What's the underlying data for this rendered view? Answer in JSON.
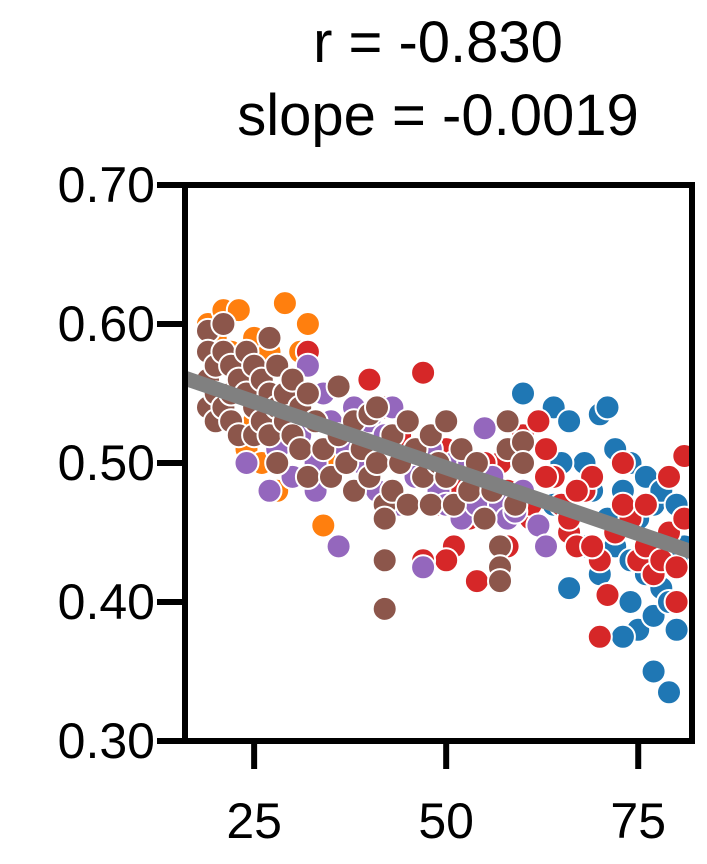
{
  "chart_data": {
    "type": "scatter",
    "title_lines": [
      "r = -0.830",
      "slope = -0.0019"
    ],
    "xlabel": "",
    "ylabel": "",
    "xlim": [
      16,
      82
    ],
    "ylim": [
      0.3,
      0.7
    ],
    "x_ticks": [
      25,
      50,
      75
    ],
    "x_tick_labels": [
      "25",
      "50",
      "75"
    ],
    "y_ticks": [
      0.3,
      0.4,
      0.5,
      0.6,
      0.7
    ],
    "y_tick_labels": [
      "0.30",
      "0.40",
      "0.50",
      "0.60",
      "0.70"
    ],
    "grid": false,
    "regression_line": {
      "r": -0.83,
      "slope": -0.0019,
      "points": [
        [
          16,
          0.561
        ],
        [
          82,
          0.436
        ]
      ],
      "color": "#808080"
    },
    "series": [
      {
        "name": "orange",
        "color": "#ff7f0e",
        "points": [
          [
            19,
            0.6
          ],
          [
            20,
            0.59
          ],
          [
            21,
            0.61
          ],
          [
            22,
            0.58
          ],
          [
            23,
            0.61
          ],
          [
            24,
            0.57
          ],
          [
            25,
            0.59
          ],
          [
            26,
            0.56
          ],
          [
            27,
            0.58
          ],
          [
            29,
            0.615
          ],
          [
            31,
            0.58
          ],
          [
            32,
            0.6
          ],
          [
            24,
            0.51
          ],
          [
            26,
            0.5
          ],
          [
            28,
            0.48
          ],
          [
            30,
            0.49
          ],
          [
            34,
            0.455
          ],
          [
            36,
            0.5
          ],
          [
            38,
            0.48
          ],
          [
            22,
            0.55
          ],
          [
            25,
            0.53
          ]
        ]
      },
      {
        "name": "blue",
        "color": "#1f77b4",
        "points": [
          [
            60,
            0.52
          ],
          [
            62,
            0.53
          ],
          [
            64,
            0.54
          ],
          [
            66,
            0.53
          ],
          [
            68,
            0.5
          ],
          [
            70,
            0.535
          ],
          [
            71,
            0.54
          ],
          [
            72,
            0.51
          ],
          [
            73,
            0.48
          ],
          [
            74,
            0.5
          ],
          [
            75,
            0.46
          ],
          [
            76,
            0.49
          ],
          [
            77,
            0.47
          ],
          [
            78,
            0.48
          ],
          [
            79,
            0.45
          ],
          [
            80,
            0.47
          ],
          [
            81,
            0.44
          ],
          [
            74,
            0.4
          ],
          [
            75,
            0.38
          ],
          [
            73,
            0.375
          ],
          [
            76,
            0.42
          ],
          [
            77,
            0.39
          ],
          [
            78,
            0.41
          ],
          [
            79,
            0.4
          ],
          [
            80,
            0.38
          ],
          [
            77,
            0.35
          ],
          [
            79,
            0.335
          ],
          [
            66,
            0.41
          ],
          [
            70,
            0.42
          ],
          [
            72,
            0.44
          ],
          [
            60,
            0.55
          ],
          [
            64,
            0.47
          ],
          [
            68,
            0.44
          ],
          [
            71,
            0.46
          ],
          [
            74,
            0.43
          ],
          [
            80,
            0.43
          ],
          [
            65,
            0.5
          ],
          [
            69,
            0.48
          ]
        ]
      },
      {
        "name": "red",
        "color": "#d62728",
        "points": [
          [
            32,
            0.58
          ],
          [
            40,
            0.56
          ],
          [
            42,
            0.54
          ],
          [
            44,
            0.52
          ],
          [
            46,
            0.49
          ],
          [
            47,
            0.565
          ],
          [
            48,
            0.5
          ],
          [
            49,
            0.47
          ],
          [
            50,
            0.51
          ],
          [
            51,
            0.44
          ],
          [
            52,
            0.48
          ],
          [
            53,
            0.46
          ],
          [
            54,
            0.415
          ],
          [
            56,
            0.47
          ],
          [
            57,
            0.5
          ],
          [
            58,
            0.48
          ],
          [
            59,
            0.51
          ],
          [
            60,
            0.52
          ],
          [
            61,
            0.46
          ],
          [
            62,
            0.53
          ],
          [
            63,
            0.51
          ],
          [
            64,
            0.49
          ],
          [
            65,
            0.47
          ],
          [
            66,
            0.45
          ],
          [
            67,
            0.44
          ],
          [
            68,
            0.48
          ],
          [
            69,
            0.49
          ],
          [
            70,
            0.43
          ],
          [
            71,
            0.405
          ],
          [
            72,
            0.45
          ],
          [
            73,
            0.5
          ],
          [
            74,
            0.46
          ],
          [
            75,
            0.43
          ],
          [
            76,
            0.44
          ],
          [
            77,
            0.42
          ],
          [
            78,
            0.43
          ],
          [
            79,
            0.45
          ],
          [
            80,
            0.425
          ],
          [
            81,
            0.505
          ],
          [
            80,
            0.4
          ],
          [
            70,
            0.375
          ],
          [
            69,
            0.44
          ],
          [
            66,
            0.46
          ],
          [
            63,
            0.49
          ],
          [
            58,
            0.44
          ],
          [
            50,
            0.43
          ],
          [
            47,
            0.43
          ],
          [
            55,
            0.5
          ],
          [
            61,
            0.47
          ],
          [
            67,
            0.48
          ],
          [
            73,
            0.47
          ],
          [
            76,
            0.47
          ],
          [
            79,
            0.49
          ],
          [
            81,
            0.46
          ]
        ]
      },
      {
        "name": "purple",
        "color": "#9467bd",
        "points": [
          [
            22,
            0.57
          ],
          [
            24,
            0.5
          ],
          [
            26,
            0.55
          ],
          [
            27,
            0.48
          ],
          [
            29,
            0.53
          ],
          [
            30,
            0.49
          ],
          [
            31,
            0.52
          ],
          [
            32,
            0.57
          ],
          [
            33,
            0.5
          ],
          [
            34,
            0.55
          ],
          [
            35,
            0.53
          ],
          [
            36,
            0.44
          ],
          [
            37,
            0.51
          ],
          [
            38,
            0.54
          ],
          [
            39,
            0.5
          ],
          [
            40,
            0.53
          ],
          [
            41,
            0.48
          ],
          [
            42,
            0.52
          ],
          [
            43,
            0.54
          ],
          [
            44,
            0.47
          ],
          [
            45,
            0.5
          ],
          [
            46,
            0.49
          ],
          [
            47,
            0.425
          ],
          [
            48,
            0.51
          ],
          [
            49,
            0.48
          ],
          [
            50,
            0.47
          ],
          [
            51,
            0.5
          ],
          [
            52,
            0.46
          ],
          [
            53,
            0.5
          ],
          [
            54,
            0.47
          ],
          [
            55,
            0.525
          ],
          [
            56,
            0.49
          ],
          [
            57,
            0.47
          ],
          [
            58,
            0.46
          ],
          [
            59,
            0.465
          ],
          [
            60,
            0.48
          ],
          [
            62,
            0.455
          ],
          [
            63,
            0.44
          ],
          [
            28,
            0.51
          ],
          [
            33,
            0.48
          ]
        ]
      },
      {
        "name": "brown",
        "color": "#8c564b",
        "points": [
          [
            19,
            0.595
          ],
          [
            19,
            0.58
          ],
          [
            19,
            0.56
          ],
          [
            19,
            0.54
          ],
          [
            20,
            0.57
          ],
          [
            20,
            0.55
          ],
          [
            20,
            0.53
          ],
          [
            21,
            0.6
          ],
          [
            21,
            0.58
          ],
          [
            21,
            0.54
          ],
          [
            22,
            0.57
          ],
          [
            22,
            0.55
          ],
          [
            22,
            0.53
          ],
          [
            23,
            0.56
          ],
          [
            23,
            0.52
          ],
          [
            24,
            0.58
          ],
          [
            24,
            0.55
          ],
          [
            25,
            0.57
          ],
          [
            25,
            0.54
          ],
          [
            25,
            0.52
          ],
          [
            26,
            0.56
          ],
          [
            26,
            0.53
          ],
          [
            27,
            0.59
          ],
          [
            27,
            0.55
          ],
          [
            27,
            0.52
          ],
          [
            28,
            0.57
          ],
          [
            28,
            0.54
          ],
          [
            28,
            0.5
          ],
          [
            29,
            0.55
          ],
          [
            29,
            0.53
          ],
          [
            30,
            0.56
          ],
          [
            30,
            0.52
          ],
          [
            31,
            0.54
          ],
          [
            31,
            0.51
          ],
          [
            32,
            0.55
          ],
          [
            32,
            0.49
          ],
          [
            33,
            0.53
          ],
          [
            34,
            0.51
          ],
          [
            35,
            0.49
          ],
          [
            36,
            0.555
          ],
          [
            36,
            0.52
          ],
          [
            37,
            0.5
          ],
          [
            38,
            0.53
          ],
          [
            38,
            0.48
          ],
          [
            39,
            0.51
          ],
          [
            40,
            0.535
          ],
          [
            40,
            0.49
          ],
          [
            41,
            0.54
          ],
          [
            41,
            0.5
          ],
          [
            42,
            0.47
          ],
          [
            42,
            0.46
          ],
          [
            42,
            0.43
          ],
          [
            42,
            0.395
          ],
          [
            43,
            0.52
          ],
          [
            43,
            0.48
          ],
          [
            44,
            0.5
          ],
          [
            45,
            0.53
          ],
          [
            45,
            0.47
          ],
          [
            46,
            0.51
          ],
          [
            47,
            0.49
          ],
          [
            48,
            0.52
          ],
          [
            48,
            0.47
          ],
          [
            49,
            0.5
          ],
          [
            50,
            0.49
          ],
          [
            50,
            0.53
          ],
          [
            51,
            0.47
          ],
          [
            52,
            0.51
          ],
          [
            53,
            0.48
          ],
          [
            54,
            0.5
          ],
          [
            55,
            0.46
          ],
          [
            56,
            0.48
          ],
          [
            57,
            0.44
          ],
          [
            57,
            0.425
          ],
          [
            57,
            0.415
          ],
          [
            58,
            0.53
          ],
          [
            58,
            0.51
          ],
          [
            59,
            0.47
          ],
          [
            60,
            0.515
          ],
          [
            60,
            0.5
          ]
        ]
      }
    ]
  }
}
